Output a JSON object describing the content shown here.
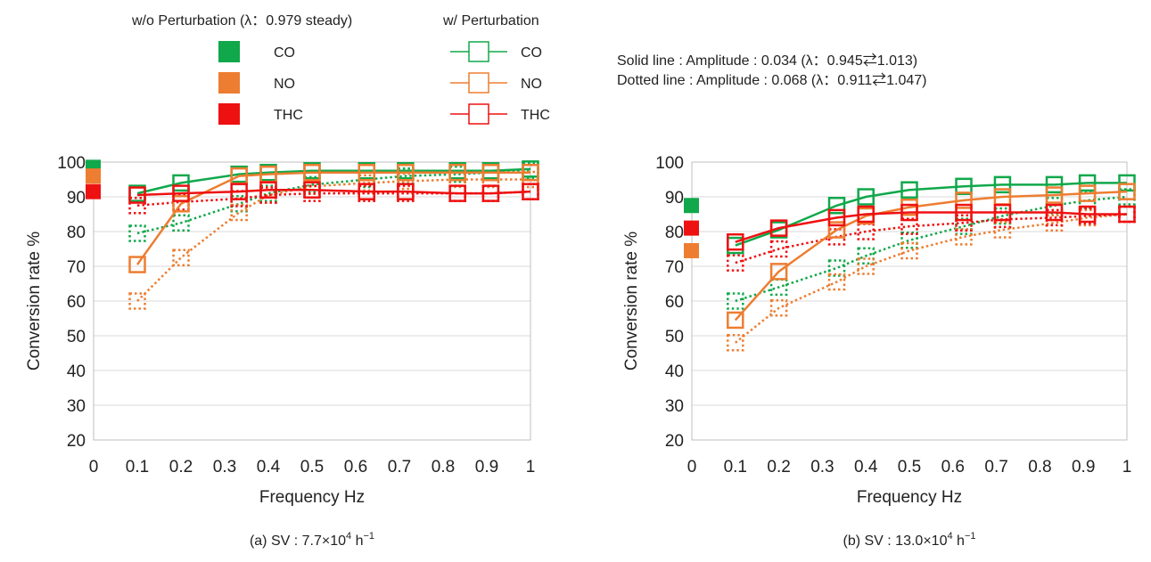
{
  "legend": {
    "without_title": "w/o Perturbation (λ：0.979 steady)",
    "with_title": "w/ Perturbation",
    "species": [
      {
        "label": "CO",
        "color": "#10a84a"
      },
      {
        "label": "NO",
        "color": "#ed7d31"
      },
      {
        "label": "THC",
        "color": "#ee1111"
      }
    ],
    "solid_note": "Solid line : Amplitude : 0.034 (λ：0.945⇄1.013)",
    "dotted_note": "Dotted line : Amplitude : 0.068 (λ：0.911⇄1.047)"
  },
  "chart_data": [
    {
      "type": "line",
      "caption": "(a) SV : 7.7×10",
      "caption_exp": "4",
      "caption_unit": " h",
      "caption_unit_exp": "−1",
      "xlabel": "Frequency Hz",
      "ylabel": "Conversion rate %",
      "xlim": [
        0,
        1
      ],
      "ylim": [
        20,
        100
      ],
      "xticks": [
        "0",
        "0.1",
        "0.2",
        "0.3",
        "0.4",
        "0.5",
        "0.6",
        "0.7",
        "0.8",
        "0.9",
        "1"
      ],
      "yticks": [
        "20",
        "30",
        "40",
        "50",
        "60",
        "70",
        "80",
        "90",
        "100"
      ],
      "steady": {
        "CO": 98.5,
        "NO": 96,
        "THC": 91.5
      },
      "x": [
        0.1,
        0.2,
        0.333,
        0.4,
        0.5,
        0.625,
        0.714,
        0.833,
        0.909,
        1.0
      ],
      "series": [
        {
          "name": "CO",
          "style": "solid",
          "values": [
            91,
            94,
            96.5,
            97,
            97.5,
            97.5,
            97.5,
            97.5,
            97.5,
            98
          ]
        },
        {
          "name": "NO",
          "style": "solid",
          "values": [
            70.5,
            88,
            96,
            96.5,
            97,
            97,
            97,
            97,
            97,
            97
          ]
        },
        {
          "name": "THC",
          "style": "solid",
          "values": [
            90.5,
            91,
            91.5,
            92,
            92,
            91.5,
            91.5,
            91,
            91,
            91.5
          ]
        },
        {
          "name": "CO",
          "style": "dotted",
          "values": [
            79.5,
            82.5,
            88,
            91,
            93.5,
            95,
            96,
            96.5,
            97,
            97.5
          ]
        },
        {
          "name": "NO",
          "style": "dotted",
          "values": [
            60,
            72.5,
            85.5,
            90.5,
            93,
            94,
            94.5,
            95,
            95,
            95
          ]
        },
        {
          "name": "THC",
          "style": "dotted",
          "values": [
            87.5,
            88.5,
            89.5,
            90.5,
            91,
            91,
            91,
            91,
            91,
            91.5
          ]
        }
      ]
    },
    {
      "type": "line",
      "caption": "(b) SV : 13.0×10",
      "caption_exp": "4",
      "caption_unit": " h",
      "caption_unit_exp": "−1",
      "xlabel": "Frequency Hz",
      "ylabel": "Conversion rate %",
      "xlim": [
        0,
        1
      ],
      "ylim": [
        20,
        100
      ],
      "xticks": [
        "0",
        "0.1",
        "0.2",
        "0.3",
        "0.4",
        "0.5",
        "0.6",
        "0.7",
        "0.8",
        "0.9",
        "1"
      ],
      "yticks": [
        "20",
        "30",
        "40",
        "50",
        "60",
        "70",
        "80",
        "90",
        "100"
      ],
      "steady": {
        "CO": 87.5,
        "NO": 74.5,
        "THC": 81
      },
      "x": [
        0.1,
        0.2,
        0.333,
        0.4,
        0.5,
        0.625,
        0.714,
        0.833,
        0.909,
        1.0
      ],
      "series": [
        {
          "name": "CO",
          "style": "solid",
          "values": [
            76,
            80.5,
            87.5,
            90,
            92,
            93,
            93.5,
            93.5,
            94,
            94
          ]
        },
        {
          "name": "NO",
          "style": "solid",
          "values": [
            54.5,
            68.5,
            80.5,
            84.5,
            87,
            89,
            90,
            90.5,
            91,
            91.5
          ]
        },
        {
          "name": "THC",
          "style": "solid",
          "values": [
            77,
            81,
            84,
            85,
            85.5,
            85.5,
            85.5,
            85.5,
            85,
            85
          ]
        },
        {
          "name": "CO",
          "style": "dotted",
          "values": [
            60,
            64,
            69.5,
            73,
            77.5,
            81.5,
            84.5,
            87.5,
            89,
            90
          ]
        },
        {
          "name": "NO",
          "style": "dotted",
          "values": [
            48,
            58,
            65.5,
            70,
            74.5,
            78.5,
            80.5,
            82.5,
            84,
            85
          ]
        },
        {
          "name": "THC",
          "style": "dotted",
          "values": [
            71,
            75,
            78.5,
            80,
            81.5,
            82.5,
            83.5,
            84,
            84.5,
            85
          ]
        }
      ]
    }
  ]
}
